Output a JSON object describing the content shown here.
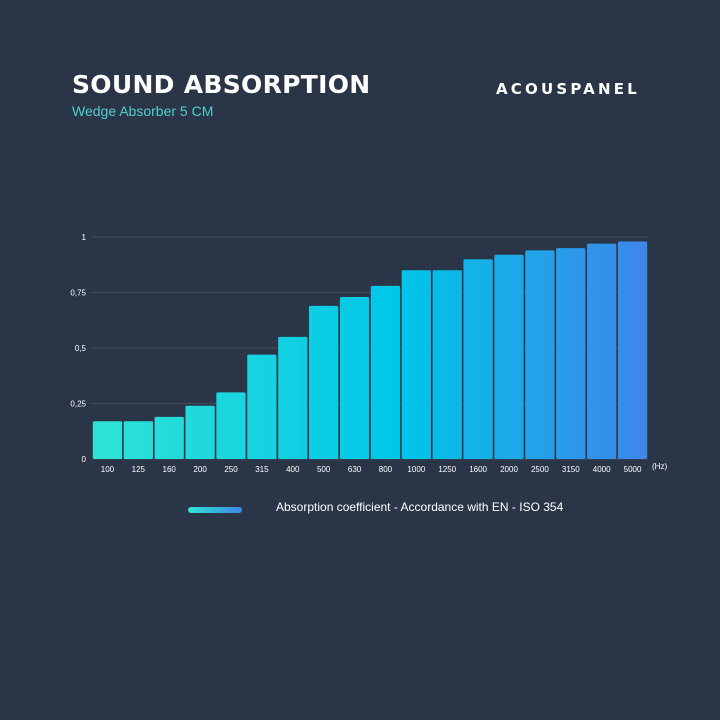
{
  "header": {
    "title": "SOUND ABSORPTION",
    "subtitle": "Wedge Absorber 5 CM",
    "brand": "ACOUSPANEL"
  },
  "legend": {
    "label": "Absorption coefficient - Accordance with EN - ISO 354"
  },
  "colors": {
    "background": "#2b3548",
    "bar_start": "#2fe3d6",
    "bar_end": "#3d86ea",
    "grid": "#4a5568",
    "text": "#ffffff",
    "subtitle": "#4fd1cf"
  },
  "chart_data": {
    "type": "bar",
    "categories": [
      "100",
      "125",
      "160",
      "200",
      "250",
      "315",
      "400",
      "500",
      "630",
      "800",
      "1000",
      "1250",
      "1600",
      "2000",
      "2500",
      "3150",
      "4000",
      "5000"
    ],
    "values": [
      0.17,
      0.17,
      0.19,
      0.24,
      0.3,
      0.47,
      0.55,
      0.69,
      0.73,
      0.78,
      0.85,
      0.85,
      0.9,
      0.92,
      0.94,
      0.95,
      0.97,
      0.98
    ],
    "x_unit": "(Hz)",
    "ylim": [
      0,
      1
    ],
    "yticks": [
      0,
      0.25,
      0.5,
      0.75,
      1
    ],
    "ytick_labels": [
      "0",
      "0,25",
      "0,5",
      "0,75",
      "1"
    ],
    "grid": true,
    "legend_position": "bottom"
  }
}
